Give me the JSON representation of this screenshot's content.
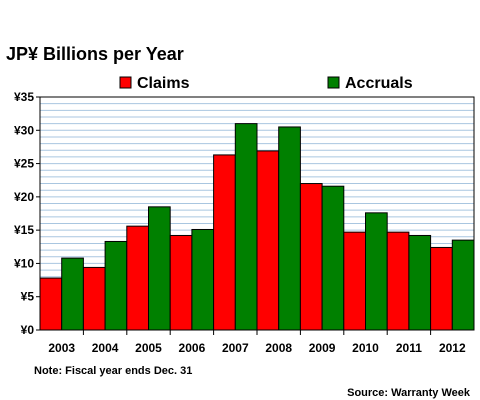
{
  "chart_data": {
    "type": "bar",
    "title": "JP¥ Billions per Year",
    "categories": [
      "2003",
      "2004",
      "2005",
      "2006",
      "2007",
      "2008",
      "2009",
      "2010",
      "2011",
      "2012"
    ],
    "series": [
      {
        "name": "Claims",
        "color": "#ff0000",
        "values": [
          7.8,
          9.4,
          15.6,
          14.2,
          26.3,
          26.9,
          22.0,
          14.7,
          14.7,
          12.4
        ]
      },
      {
        "name": "Accruals",
        "color": "#008000",
        "values": [
          10.8,
          13.3,
          18.5,
          15.1,
          31.0,
          30.5,
          21.6,
          17.6,
          14.2,
          13.5
        ]
      }
    ],
    "ylim": [
      0,
      35
    ],
    "y_ticks": [
      0,
      5,
      10,
      15,
      20,
      25,
      30,
      35
    ],
    "y_tick_labels": [
      "¥0",
      "¥5",
      "¥10",
      "¥15",
      "¥20",
      "¥25",
      "¥30",
      "¥35"
    ],
    "grid": true,
    "legend_position": "top",
    "plot_background": "#ffffff",
    "grid_color": "#a9c6e0",
    "note": "Note: Fiscal year ends Dec. 31",
    "source": "Source: Warranty Week"
  }
}
